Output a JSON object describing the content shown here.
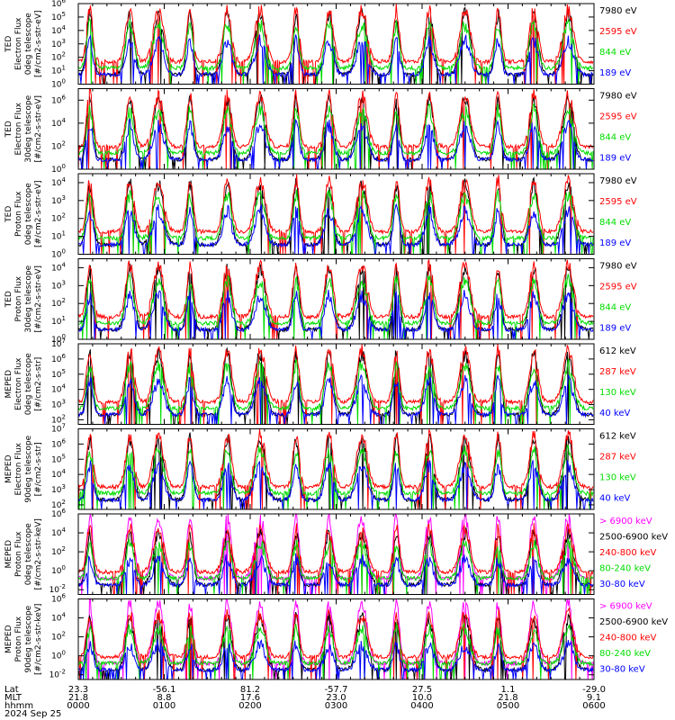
{
  "chart_data": {
    "type": "line",
    "panels": [
      {
        "ylabel": [
          "TED",
          "Electron Flux",
          "0deg telescope",
          "[#/cm2-s-str-eV]"
        ],
        "yticks": [
          {
            "base": "10",
            "exp": "0"
          },
          {
            "base": "10",
            "exp": "1"
          },
          {
            "base": "10",
            "exp": "2"
          },
          {
            "base": "10",
            "exp": "3"
          },
          {
            "base": "10",
            "exp": "4"
          },
          {
            "base": "10",
            "exp": "5"
          },
          {
            "base": "10",
            "exp": "6"
          }
        ],
        "ylim_log10": [
          0,
          6
        ],
        "series": [
          {
            "name": "7980 eV",
            "color": "#000000"
          },
          {
            "name": "2595 eV",
            "color": "#ff0000"
          },
          {
            "name": "844 eV",
            "color": "#00dd00"
          },
          {
            "name": "189 eV",
            "color": "#0000ff"
          }
        ]
      },
      {
        "ylabel": [
          "TED",
          "Electron Flux",
          "30deg telescope",
          "[#/cm2-s-str-eV]"
        ],
        "yticks": [
          {
            "base": "10",
            "exp": "0"
          },
          {
            "base": "10",
            "exp": "2"
          },
          {
            "base": "10",
            "exp": "4"
          },
          {
            "base": "10",
            "exp": "6"
          }
        ],
        "ylim_log10": [
          0,
          7
        ],
        "series": [
          {
            "name": "7980 eV",
            "color": "#000000"
          },
          {
            "name": "2595 eV",
            "color": "#ff0000"
          },
          {
            "name": "844 eV",
            "color": "#00dd00"
          },
          {
            "name": "189 eV",
            "color": "#0000ff"
          }
        ]
      },
      {
        "ylabel": [
          "TED",
          "Proton Flux",
          "0deg telescope",
          "[#/cm2-s-str-eV]"
        ],
        "yticks": [
          {
            "base": "10",
            "exp": "0"
          },
          {
            "base": "10",
            "exp": "1"
          },
          {
            "base": "10",
            "exp": "2"
          },
          {
            "base": "10",
            "exp": "3"
          },
          {
            "base": "10",
            "exp": "4"
          }
        ],
        "ylim_log10": [
          0,
          4.5
        ],
        "series": [
          {
            "name": "7980 eV",
            "color": "#000000"
          },
          {
            "name": "2595 eV",
            "color": "#ff0000"
          },
          {
            "name": "844 eV",
            "color": "#00dd00"
          },
          {
            "name": "189 eV",
            "color": "#0000ff"
          }
        ]
      },
      {
        "ylabel": [
          "TED",
          "Proton Flux",
          "30deg telescope",
          "[#/cm2-s-str-eV]"
        ],
        "yticks": [
          {
            "base": "10",
            "exp": "0"
          },
          {
            "base": "10",
            "exp": "1"
          },
          {
            "base": "10",
            "exp": "2"
          },
          {
            "base": "10",
            "exp": "3"
          },
          {
            "base": "10",
            "exp": "4"
          }
        ],
        "ylim_log10": [
          0,
          4.5
        ],
        "series": [
          {
            "name": "7980 eV",
            "color": "#000000"
          },
          {
            "name": "2595 eV",
            "color": "#ff0000"
          },
          {
            "name": "844 eV",
            "color": "#00dd00"
          },
          {
            "name": "189 eV",
            "color": "#0000ff"
          }
        ]
      },
      {
        "ylabel": [
          "MEPED",
          "Electron Flux",
          "0deg telescope",
          "[#/cm2-s-str]"
        ],
        "yticks": [
          {
            "base": "10",
            "exp": "2"
          },
          {
            "base": "10",
            "exp": "3"
          },
          {
            "base": "10",
            "exp": "4"
          },
          {
            "base": "10",
            "exp": "5"
          },
          {
            "base": "10",
            "exp": "6"
          },
          {
            "base": "10",
            "exp": "7"
          }
        ],
        "ylim_log10": [
          1.7,
          7
        ],
        "series": [
          {
            "name": "612 keV",
            "color": "#000000"
          },
          {
            "name": "287 keV",
            "color": "#ff0000"
          },
          {
            "name": "130 keV",
            "color": "#00dd00"
          },
          {
            "name": "40 keV",
            "color": "#0000ff"
          }
        ]
      },
      {
        "ylabel": [
          "MEPED",
          "Electron Flux",
          "90deg telescope",
          "[#/cm2-s-str]"
        ],
        "yticks": [
          {
            "base": "10",
            "exp": "2"
          },
          {
            "base": "10",
            "exp": "3"
          },
          {
            "base": "10",
            "exp": "4"
          },
          {
            "base": "10",
            "exp": "5"
          },
          {
            "base": "10",
            "exp": "6"
          },
          {
            "base": "10",
            "exp": "7"
          }
        ],
        "ylim_log10": [
          1.7,
          7
        ],
        "series": [
          {
            "name": "612 keV",
            "color": "#000000"
          },
          {
            "name": "287 keV",
            "color": "#ff0000"
          },
          {
            "name": "130 keV",
            "color": "#00dd00"
          },
          {
            "name": "40 keV",
            "color": "#0000ff"
          }
        ]
      },
      {
        "ylabel": [
          "MEPED",
          "Proton Flux",
          "0deg telescope",
          "[#/cm2-s-str-keV]"
        ],
        "yticks": [
          {
            "base": "10",
            "exp": "-2"
          },
          {
            "base": "10",
            "exp": "0"
          },
          {
            "base": "10",
            "exp": "2"
          },
          {
            "base": "10",
            "exp": "4"
          },
          {
            "base": "10",
            "exp": "6"
          }
        ],
        "ylim_log10": [
          -2.5,
          6
        ],
        "series": [
          {
            "name": "> 6900 keV",
            "color": "#ff00ff"
          },
          {
            "name": "2500-6900 keV",
            "color": "#000000"
          },
          {
            "name": "240-800 keV",
            "color": "#ff0000"
          },
          {
            "name": "80-240 keV",
            "color": "#00dd00"
          },
          {
            "name": "30-80 keV",
            "color": "#0000ff"
          }
        ]
      },
      {
        "ylabel": [
          "MEPED",
          "Proton Flux",
          "90deg telescope",
          "[#/cm2-s-str-keV]"
        ],
        "yticks": [
          {
            "base": "10",
            "exp": "-2"
          },
          {
            "base": "10",
            "exp": "0"
          },
          {
            "base": "10",
            "exp": "2"
          },
          {
            "base": "10",
            "exp": "4"
          },
          {
            "base": "10",
            "exp": "6"
          }
        ],
        "ylim_log10": [
          -2.5,
          6
        ],
        "series": [
          {
            "name": "> 6900 keV",
            "color": "#ff00ff"
          },
          {
            "name": "2500-6900 keV",
            "color": "#000000"
          },
          {
            "name": "240-800 keV",
            "color": "#ff0000"
          },
          {
            "name": "80-240 keV",
            "color": "#00dd00"
          },
          {
            "name": "30-80 keV",
            "color": "#0000ff"
          }
        ]
      }
    ],
    "x_axis": {
      "row_labels": [
        "Lat",
        "MLT",
        "hhmm",
        "2024 Sep 25"
      ],
      "range_minutes": [
        0,
        360
      ],
      "ticks": [
        {
          "minute": 0,
          "lat": "23.3",
          "mlt": "21.8",
          "hhmm": "0000"
        },
        {
          "minute": 60,
          "lat": "-56.1",
          "mlt": "8.8",
          "hhmm": "0100"
        },
        {
          "minute": 120,
          "lat": "81.2",
          "mlt": "17.6",
          "hhmm": "0200"
        },
        {
          "minute": 180,
          "lat": "-57.7",
          "mlt": "23.0",
          "hhmm": "0300"
        },
        {
          "minute": 240,
          "lat": "27.5",
          "mlt": "10.0",
          "hhmm": "0400"
        },
        {
          "minute": 300,
          "lat": "1.1",
          "mlt": "21.8",
          "hhmm": "0500"
        },
        {
          "minute": 360,
          "lat": "-29.0",
          "mlt": "9.1",
          "hhmm": "0600"
        }
      ]
    },
    "pass_centers_minutes": [
      8,
      36,
      56,
      78,
      104,
      127,
      152,
      175,
      198,
      222,
      245,
      270,
      293,
      318,
      342
    ]
  }
}
